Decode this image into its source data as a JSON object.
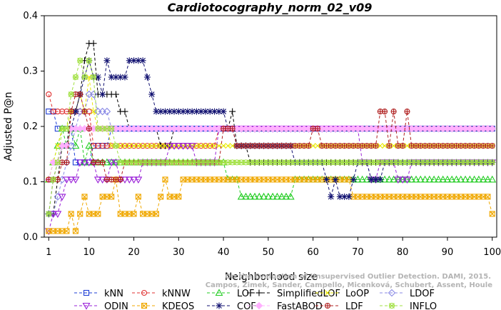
{
  "chart_data": {
    "type": "line",
    "title": "Cardiotocography_norm_02_v09",
    "xlabel": "Neighborhood size",
    "ylabel": "Adjusted P@n",
    "xlim": [
      0,
      101
    ],
    "ylim": [
      0,
      0.4
    ],
    "xticks": [
      1,
      10,
      20,
      30,
      40,
      50,
      60,
      70,
      80,
      90,
      100
    ],
    "yticks": [
      0.0,
      0.1,
      0.2,
      0.3,
      0.4
    ],
    "grid": false,
    "legend_position": "bottom",
    "credit_line1": "Campos, Zimek, Sander, Campello, Micenková, Schubert, Assent, Houle",
    "credit_line2": "On the Evaluation of Unsupervised Outlier Detection. DAMI, 2015.",
    "series": [
      {
        "name": "kNN",
        "color": "#1f3fd6",
        "marker": "square",
        "points": [
          [
            1,
            0.227
          ],
          [
            2,
            0.227
          ],
          [
            3,
            0.196
          ],
          [
            5,
            0.196
          ],
          [
            6,
            0.196
          ],
          [
            7,
            0.135
          ],
          [
            9,
            0.135
          ],
          [
            10,
            0.135
          ],
          [
            11,
            0.165
          ],
          [
            14,
            0.165
          ],
          [
            15,
            0.196
          ],
          [
            100,
            0.196
          ]
        ]
      },
      {
        "name": "kNNW",
        "color": "#e03030",
        "marker": "circle",
        "points": [
          [
            1,
            0.258
          ],
          [
            2,
            0.227
          ],
          [
            10,
            0.227
          ],
          [
            11,
            0.165
          ],
          [
            12,
            0.165
          ],
          [
            13,
            0.165
          ],
          [
            14,
            0.165
          ],
          [
            15,
            0.165
          ],
          [
            25,
            0.165
          ],
          [
            26,
            0.165
          ],
          [
            38,
            0.165
          ],
          [
            39,
            0.196
          ],
          [
            100,
            0.196
          ]
        ]
      },
      {
        "name": "LOF",
        "color": "#22cc22",
        "marker": "triangle-up",
        "points": [
          [
            1,
            0.104
          ],
          [
            2,
            0.135
          ],
          [
            3,
            0.165
          ],
          [
            4,
            0.196
          ],
          [
            5,
            0.165
          ],
          [
            6,
            0.196
          ],
          [
            7,
            0.165
          ],
          [
            8,
            0.196
          ],
          [
            9,
            0.135
          ],
          [
            10,
            0.165
          ],
          [
            11,
            0.135
          ],
          [
            40,
            0.135
          ],
          [
            41,
            0.104
          ],
          [
            43,
            0.104
          ],
          [
            44,
            0.073
          ],
          [
            55,
            0.073
          ],
          [
            56,
            0.104
          ],
          [
            100,
            0.104
          ]
        ]
      },
      {
        "name": "SimplifiedLOF",
        "color": "#000000",
        "marker": "plus",
        "points": [
          [
            1,
            0.042
          ],
          [
            2,
            0.042
          ],
          [
            3,
            0.104
          ],
          [
            4,
            0.165
          ],
          [
            5,
            0.165
          ],
          [
            6,
            0.227
          ],
          [
            7,
            0.227
          ],
          [
            8,
            0.258
          ],
          [
            9,
            0.319
          ],
          [
            10,
            0.35
          ],
          [
            11,
            0.35
          ],
          [
            12,
            0.258
          ],
          [
            16,
            0.258
          ],
          [
            17,
            0.227
          ],
          [
            18,
            0.227
          ],
          [
            19,
            0.196
          ],
          [
            25,
            0.196
          ],
          [
            26,
            0.165
          ],
          [
            28,
            0.165
          ],
          [
            29,
            0.196
          ],
          [
            41,
            0.196
          ],
          [
            42,
            0.227
          ],
          [
            43,
            0.165
          ],
          [
            45,
            0.165
          ],
          [
            46,
            0.135
          ],
          [
            60,
            0.135
          ],
          [
            61,
            0.135
          ],
          [
            100,
            0.135
          ]
        ]
      },
      {
        "name": "LoOP",
        "color": "#e8e800",
        "marker": "cross",
        "points": [
          [
            1,
            0.104
          ],
          [
            2,
            0.135
          ],
          [
            3,
            0.165
          ],
          [
            4,
            0.196
          ],
          [
            6,
            0.227
          ],
          [
            8,
            0.258
          ],
          [
            9,
            0.227
          ],
          [
            10,
            0.289
          ],
          [
            11,
            0.227
          ],
          [
            12,
            0.196
          ],
          [
            14,
            0.196
          ],
          [
            15,
            0.165
          ],
          [
            100,
            0.165
          ]
        ]
      },
      {
        "name": "LDOF",
        "color": "#8a8ae6",
        "marker": "diamond",
        "points": [
          [
            1,
            0.042
          ],
          [
            2,
            0.042
          ],
          [
            3,
            0.073
          ],
          [
            4,
            0.104
          ],
          [
            5,
            0.135
          ],
          [
            6,
            0.165
          ],
          [
            7,
            0.196
          ],
          [
            8,
            0.227
          ],
          [
            10,
            0.258
          ],
          [
            12,
            0.227
          ],
          [
            14,
            0.227
          ],
          [
            15,
            0.196
          ],
          [
            100,
            0.196
          ]
        ]
      },
      {
        "name": "ODIN",
        "color": "#9a20d8",
        "marker": "triangle-down",
        "points": [
          [
            1,
            0.011
          ],
          [
            2,
            0.042
          ],
          [
            3,
            0.042
          ],
          [
            4,
            0.073
          ],
          [
            5,
            0.104
          ],
          [
            7,
            0.104
          ],
          [
            8,
            0.135
          ],
          [
            10,
            0.135
          ],
          [
            12,
            0.104
          ],
          [
            14,
            0.104
          ],
          [
            15,
            0.135
          ],
          [
            16,
            0.135
          ],
          [
            17,
            0.104
          ],
          [
            21,
            0.104
          ],
          [
            22,
            0.135
          ],
          [
            28,
            0.165
          ],
          [
            33,
            0.165
          ],
          [
            34,
            0.135
          ],
          [
            38,
            0.135
          ],
          [
            39,
            0.196
          ],
          [
            70,
            0.196
          ],
          [
            71,
            0.135
          ],
          [
            72,
            0.135
          ],
          [
            73,
            0.104
          ],
          [
            75,
            0.135
          ],
          [
            78,
            0.135
          ],
          [
            79,
            0.104
          ],
          [
            81,
            0.104
          ],
          [
            82,
            0.135
          ],
          [
            100,
            0.135
          ]
        ]
      },
      {
        "name": "KDEOS",
        "color": "#f0a800",
        "marker": "square-x",
        "points": [
          [
            1,
            0.011
          ],
          [
            2,
            0.011
          ],
          [
            3,
            0.011
          ],
          [
            5,
            0.011
          ],
          [
            6,
            0.042
          ],
          [
            7,
            0.011
          ],
          [
            8,
            0.042
          ],
          [
            9,
            0.073
          ],
          [
            10,
            0.042
          ],
          [
            11,
            0.042
          ],
          [
            12,
            0.042
          ],
          [
            13,
            0.073
          ],
          [
            14,
            0.073
          ],
          [
            15,
            0.073
          ],
          [
            16,
            0.104
          ],
          [
            17,
            0.042
          ],
          [
            20,
            0.042
          ],
          [
            21,
            0.073
          ],
          [
            22,
            0.042
          ],
          [
            25,
            0.042
          ],
          [
            26,
            0.073
          ],
          [
            27,
            0.104
          ],
          [
            28,
            0.073
          ],
          [
            30,
            0.073
          ],
          [
            31,
            0.104
          ],
          [
            60,
            0.104
          ],
          [
            61,
            0.104
          ],
          [
            68,
            0.104
          ],
          [
            69,
            0.073
          ],
          [
            99,
            0.073
          ],
          [
            100,
            0.042
          ]
        ]
      },
      {
        "name": "COF",
        "color": "#101070",
        "marker": "asterisk",
        "points": [
          [
            1,
            0.042
          ],
          [
            2,
            0.104
          ],
          [
            3,
            0.135
          ],
          [
            4,
            0.165
          ],
          [
            5,
            0.165
          ],
          [
            6,
            0.196
          ],
          [
            7,
            0.227
          ],
          [
            8,
            0.258
          ],
          [
            9,
            0.289
          ],
          [
            10,
            0.319
          ],
          [
            11,
            0.289
          ],
          [
            12,
            0.289
          ],
          [
            13,
            0.258
          ],
          [
            14,
            0.319
          ],
          [
            15,
            0.289
          ],
          [
            18,
            0.289
          ],
          [
            19,
            0.319
          ],
          [
            22,
            0.319
          ],
          [
            23,
            0.289
          ],
          [
            24,
            0.258
          ],
          [
            25,
            0.227
          ],
          [
            40,
            0.227
          ],
          [
            41,
            0.196
          ],
          [
            42,
            0.196
          ],
          [
            43,
            0.165
          ],
          [
            55,
            0.165
          ],
          [
            56,
            0.135
          ],
          [
            62,
            0.135
          ],
          [
            63,
            0.104
          ],
          [
            64,
            0.073
          ],
          [
            65,
            0.104
          ],
          [
            66,
            0.073
          ],
          [
            68,
            0.073
          ],
          [
            69,
            0.104
          ],
          [
            70,
            0.135
          ],
          [
            72,
            0.135
          ],
          [
            73,
            0.104
          ],
          [
            75,
            0.104
          ],
          [
            76,
            0.135
          ],
          [
            100,
            0.135
          ]
        ]
      },
      {
        "name": "FastABOD",
        "color": "#ffb0ff",
        "marker": "diamond-filled",
        "points": [
          [
            1,
            0.104
          ],
          [
            2,
            0.135
          ],
          [
            3,
            0.135
          ],
          [
            4,
            0.165
          ],
          [
            6,
            0.196
          ],
          [
            100,
            0.196
          ]
        ]
      },
      {
        "name": "LDF",
        "color": "#b02020",
        "marker": "circle-plus",
        "points": [
          [
            1,
            0.104
          ],
          [
            2,
            0.104
          ],
          [
            4,
            0.135
          ],
          [
            6,
            0.227
          ],
          [
            7,
            0.258
          ],
          [
            9,
            0.227
          ],
          [
            10,
            0.196
          ],
          [
            11,
            0.135
          ],
          [
            13,
            0.135
          ],
          [
            14,
            0.104
          ],
          [
            17,
            0.104
          ],
          [
            18,
            0.135
          ],
          [
            39,
            0.135
          ],
          [
            40,
            0.196
          ],
          [
            41,
            0.196
          ],
          [
            42,
            0.196
          ],
          [
            43,
            0.165
          ],
          [
            59,
            0.165
          ],
          [
            60,
            0.196
          ],
          [
            61,
            0.196
          ],
          [
            62,
            0.165
          ],
          [
            74,
            0.165
          ],
          [
            75,
            0.227
          ],
          [
            76,
            0.227
          ],
          [
            77,
            0.165
          ],
          [
            78,
            0.227
          ],
          [
            79,
            0.165
          ],
          [
            80,
            0.165
          ],
          [
            81,
            0.227
          ],
          [
            82,
            0.165
          ],
          [
            100,
            0.165
          ]
        ]
      },
      {
        "name": "INFLO",
        "color": "#a0e040",
        "marker": "circle-star",
        "points": [
          [
            1,
            0.042
          ],
          [
            2,
            0.104
          ],
          [
            3,
            0.135
          ],
          [
            4,
            0.196
          ],
          [
            6,
            0.258
          ],
          [
            7,
            0.289
          ],
          [
            8,
            0.319
          ],
          [
            9,
            0.289
          ],
          [
            10,
            0.319
          ],
          [
            11,
            0.289
          ],
          [
            12,
            0.196
          ],
          [
            16,
            0.165
          ],
          [
            17,
            0.135
          ],
          [
            100,
            0.135
          ]
        ]
      }
    ],
    "legend_layout": [
      [
        "kNN",
        "kNNW",
        "LOF",
        "SimplifiedLOF",
        "LoOP",
        "LDOF"
      ],
      [
        "ODIN",
        "KDEOS",
        "COF",
        "FastABOD",
        "LDF",
        "INFLO"
      ]
    ]
  }
}
